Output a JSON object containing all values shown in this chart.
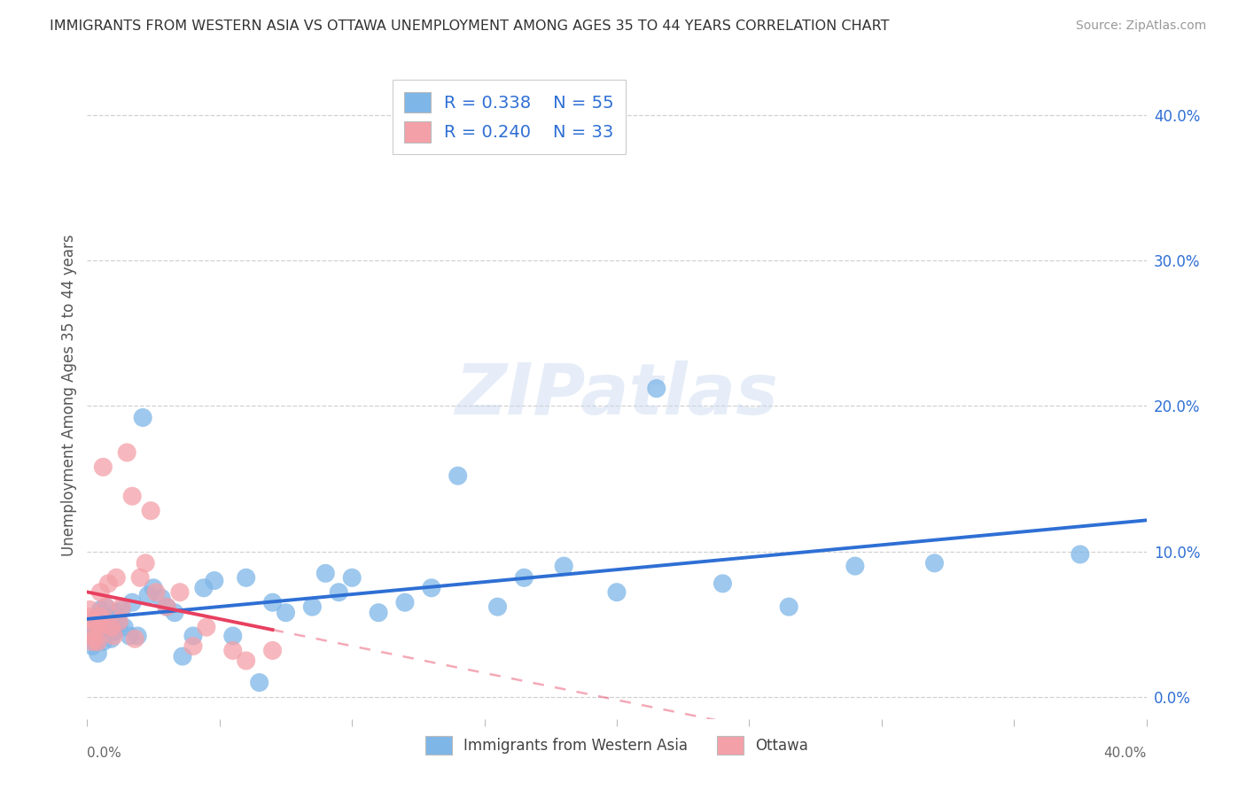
{
  "title": "IMMIGRANTS FROM WESTERN ASIA VS OTTAWA UNEMPLOYMENT AMONG AGES 35 TO 44 YEARS CORRELATION CHART",
  "source": "Source: ZipAtlas.com",
  "ylabel": "Unemployment Among Ages 35 to 44 years",
  "right_ytick_labels": [
    "0.0%",
    "10.0%",
    "20.0%",
    "30.0%",
    "40.0%"
  ],
  "right_ytick_vals": [
    0.0,
    0.1,
    0.2,
    0.3,
    0.4
  ],
  "xlim": [
    0.0,
    0.4
  ],
  "ylim": [
    -0.015,
    0.43
  ],
  "legend_label1": "Immigrants from Western Asia",
  "legend_label2": "Ottawa",
  "R1": "0.338",
  "N1": "55",
  "R2": "0.240",
  "N2": "33",
  "blue_color": "#7EB6E8",
  "pink_color": "#F4A0A8",
  "blue_line_color": "#2E6FD4",
  "pink_line_color": "#E84060",
  "watermark": "ZIPatlas",
  "blue_x": [
    0.001,
    0.002,
    0.002,
    0.003,
    0.003,
    0.004,
    0.004,
    0.005,
    0.005,
    0.006,
    0.006,
    0.007,
    0.008,
    0.009,
    0.01,
    0.011,
    0.012,
    0.013,
    0.014,
    0.016,
    0.017,
    0.019,
    0.021,
    0.023,
    0.025,
    0.028,
    0.03,
    0.033,
    0.036,
    0.04,
    0.044,
    0.048,
    0.055,
    0.06,
    0.065,
    0.07,
    0.075,
    0.085,
    0.09,
    0.095,
    0.1,
    0.11,
    0.12,
    0.13,
    0.14,
    0.155,
    0.165,
    0.18,
    0.2,
    0.215,
    0.24,
    0.265,
    0.29,
    0.32,
    0.375
  ],
  "blue_y": [
    0.04,
    0.042,
    0.035,
    0.048,
    0.038,
    0.055,
    0.03,
    0.06,
    0.045,
    0.052,
    0.038,
    0.062,
    0.055,
    0.04,
    0.045,
    0.058,
    0.05,
    0.06,
    0.048,
    0.042,
    0.065,
    0.042,
    0.192,
    0.07,
    0.075,
    0.068,
    0.062,
    0.058,
    0.028,
    0.042,
    0.075,
    0.08,
    0.042,
    0.082,
    0.01,
    0.065,
    0.058,
    0.062,
    0.085,
    0.072,
    0.082,
    0.058,
    0.065,
    0.075,
    0.152,
    0.062,
    0.082,
    0.09,
    0.072,
    0.212,
    0.078,
    0.062,
    0.09,
    0.092,
    0.098
  ],
  "pink_x": [
    0.001,
    0.001,
    0.002,
    0.002,
    0.003,
    0.003,
    0.004,
    0.004,
    0.005,
    0.005,
    0.006,
    0.006,
    0.007,
    0.008,
    0.009,
    0.01,
    0.011,
    0.012,
    0.013,
    0.015,
    0.017,
    0.018,
    0.02,
    0.022,
    0.024,
    0.026,
    0.03,
    0.035,
    0.04,
    0.045,
    0.055,
    0.06,
    0.07
  ],
  "pink_y": [
    0.055,
    0.06,
    0.045,
    0.038,
    0.052,
    0.04,
    0.048,
    0.038,
    0.072,
    0.055,
    0.05,
    0.158,
    0.062,
    0.078,
    0.048,
    0.042,
    0.082,
    0.052,
    0.062,
    0.168,
    0.138,
    0.04,
    0.082,
    0.092,
    0.128,
    0.072,
    0.062,
    0.072,
    0.035,
    0.048,
    0.032,
    0.025,
    0.032
  ]
}
